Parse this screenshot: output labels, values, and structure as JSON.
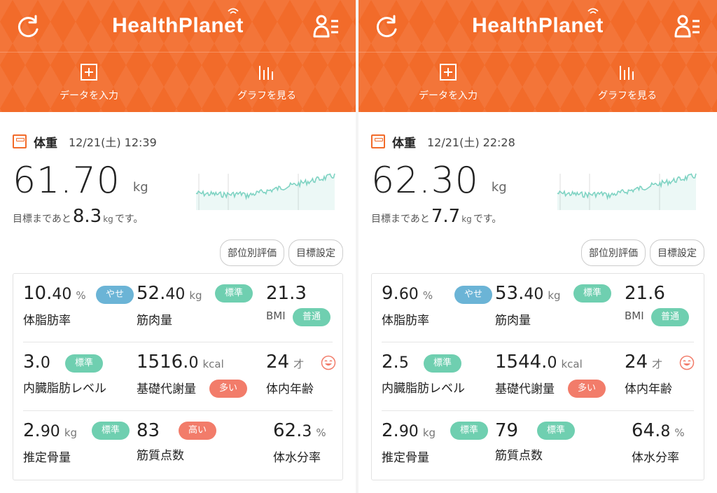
{
  "app": {
    "logo": "HealthPlanet"
  },
  "actions": [
    {
      "label": "データを入力",
      "icon": "plus-square-icon"
    },
    {
      "label": "グラフを見る",
      "icon": "bar-graph-icon"
    }
  ],
  "buttons": {
    "parts": "部位別評価",
    "goal": "目標設定"
  },
  "panels": [
    {
      "weight_label": "体重",
      "date": "12/21(土) 12:39",
      "weight": "61.70",
      "weight_unit": "kg",
      "goal_prefix": "目標まであと",
      "goal_value": "8.3",
      "goal_unit": "kg",
      "goal_suffix": "です。",
      "metrics": {
        "bodyfat": {
          "int": "10.",
          "dec": "40",
          "unit": "%",
          "label": "体脂肪率",
          "badge": "やせ"
        },
        "muscle": {
          "int": "52.",
          "dec": "40",
          "unit": "kg",
          "label": "筋肉量",
          "badge": "標準"
        },
        "bmi": {
          "val": "21.3",
          "label": "BMI",
          "badge": "普通"
        },
        "visceral": {
          "int": "3.",
          "dec": "0",
          "label": "内臓脂肪レベル",
          "badge": "標準"
        },
        "bmr": {
          "int": "1516.",
          "dec": "0",
          "unit": "kcal",
          "label": "基礎代謝量",
          "badge": "多い"
        },
        "age": {
          "val": "24",
          "unit": "才",
          "label": "体内年齢"
        },
        "bone": {
          "int": "2.",
          "dec": "90",
          "unit": "kg",
          "label": "推定骨量",
          "badge": "標準"
        },
        "muscle_score": {
          "val": "83",
          "label": "筋質点数",
          "badge": "高い"
        },
        "water": {
          "int": "62.",
          "dec": "3",
          "unit": "%",
          "label": "体水分率"
        }
      }
    },
    {
      "weight_label": "体重",
      "date": "12/21(土) 22:28",
      "weight": "62.30",
      "weight_unit": "kg",
      "goal_prefix": "目標まであと",
      "goal_value": "7.7",
      "goal_unit": "kg",
      "goal_suffix": "です。",
      "metrics": {
        "bodyfat": {
          "int": "9.",
          "dec": "60",
          "unit": "%",
          "label": "体脂肪率",
          "badge": "やせ"
        },
        "muscle": {
          "int": "53.",
          "dec": "40",
          "unit": "kg",
          "label": "筋肉量",
          "badge": "標準"
        },
        "bmi": {
          "val": "21.6",
          "label": "BMI",
          "badge": "普通"
        },
        "visceral": {
          "int": "2.",
          "dec": "5",
          "label": "内臓脂肪レベル",
          "badge": "標準"
        },
        "bmr": {
          "int": "1544.",
          "dec": "0",
          "unit": "kcal",
          "label": "基礎代謝量",
          "badge": "多い"
        },
        "age": {
          "val": "24",
          "unit": "才",
          "label": "体内年齢"
        },
        "bone": {
          "int": "2.",
          "dec": "90",
          "unit": "kg",
          "label": "推定骨量",
          "badge": "標準"
        },
        "muscle_score": {
          "val": "79",
          "label": "筋質点数",
          "badge": "標準"
        },
        "water": {
          "int": "64.",
          "dec": "8",
          "unit": "%",
          "label": "体水分率"
        }
      }
    }
  ],
  "colors": {
    "brand": "#f26b2a",
    "blue_badge": "#6bb4d6",
    "green_badge": "#6fcfb0",
    "red_badge": "#f27c6a",
    "spark": "#7fd3c3"
  }
}
